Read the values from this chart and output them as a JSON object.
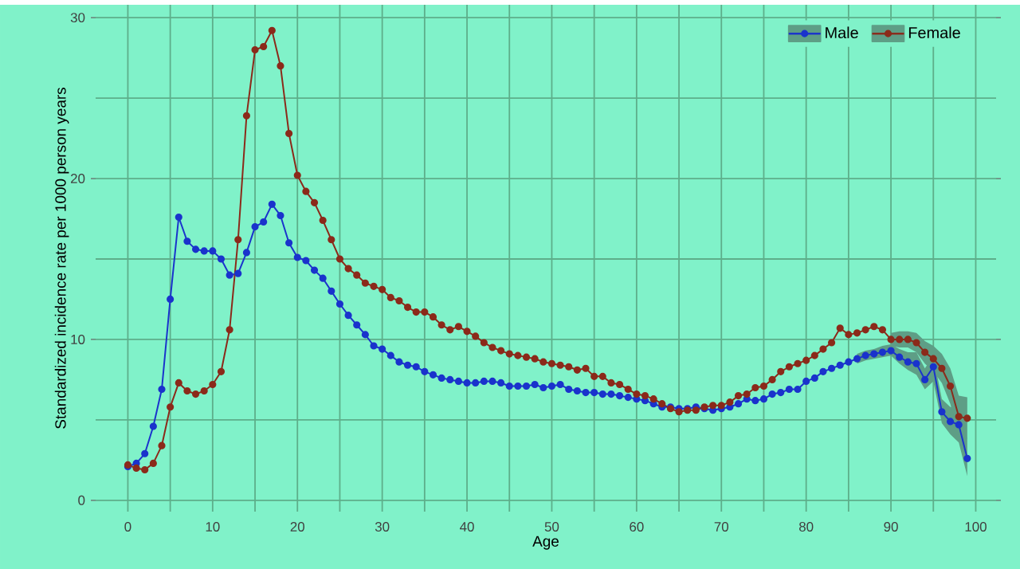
{
  "chart_data": {
    "type": "line",
    "xlabel": "Age",
    "ylabel": "Standardized incidence rate per 1000 person years",
    "x": [
      0,
      1,
      2,
      3,
      4,
      5,
      6,
      7,
      8,
      9,
      10,
      11,
      12,
      13,
      14,
      15,
      16,
      17,
      18,
      19,
      20,
      21,
      22,
      23,
      24,
      25,
      26,
      27,
      28,
      29,
      30,
      31,
      32,
      33,
      34,
      35,
      36,
      37,
      38,
      39,
      40,
      41,
      42,
      43,
      44,
      45,
      46,
      47,
      48,
      49,
      50,
      51,
      52,
      53,
      54,
      55,
      56,
      57,
      58,
      59,
      60,
      61,
      62,
      63,
      64,
      65,
      66,
      67,
      68,
      69,
      70,
      71,
      72,
      73,
      74,
      75,
      76,
      77,
      78,
      79,
      80,
      81,
      82,
      83,
      84,
      85,
      86,
      87,
      88,
      89,
      90,
      91,
      92,
      93,
      94,
      95,
      96,
      97,
      98,
      99
    ],
    "series": [
      {
        "name": "Male",
        "color": "#1a33cc",
        "values": [
          2.1,
          2.3,
          2.9,
          4.6,
          6.9,
          12.5,
          17.6,
          16.1,
          15.6,
          15.5,
          15.5,
          15.0,
          14.0,
          14.1,
          15.4,
          17.0,
          17.3,
          18.4,
          17.7,
          16.0,
          15.1,
          14.9,
          14.3,
          13.8,
          13.0,
          12.2,
          11.5,
          10.9,
          10.3,
          9.6,
          9.4,
          9.0,
          8.6,
          8.4,
          8.3,
          8.0,
          7.8,
          7.6,
          7.5,
          7.4,
          7.3,
          7.3,
          7.4,
          7.4,
          7.3,
          7.1,
          7.1,
          7.1,
          7.2,
          7.0,
          7.1,
          7.2,
          6.9,
          6.8,
          6.7,
          6.7,
          6.6,
          6.6,
          6.5,
          6.4,
          6.3,
          6.2,
          6.0,
          5.8,
          5.8,
          5.7,
          5.7,
          5.8,
          5.7,
          5.6,
          5.7,
          5.8,
          6.0,
          6.3,
          6.2,
          6.3,
          6.6,
          6.7,
          6.9,
          6.9,
          7.4,
          7.6,
          8.0,
          8.2,
          8.4,
          8.6,
          8.8,
          9.0,
          9.1,
          9.2,
          9.3,
          8.9,
          8.6,
          8.5,
          7.5,
          8.3,
          5.5,
          4.9,
          4.7,
          2.6
        ],
        "lower": [
          null,
          null,
          null,
          null,
          null,
          null,
          null,
          null,
          null,
          null,
          null,
          null,
          null,
          null,
          null,
          null,
          null,
          null,
          null,
          null,
          null,
          null,
          null,
          null,
          null,
          null,
          null,
          null,
          null,
          null,
          null,
          null,
          null,
          null,
          null,
          null,
          null,
          null,
          null,
          null,
          null,
          null,
          null,
          null,
          null,
          null,
          null,
          null,
          null,
          null,
          null,
          null,
          null,
          null,
          null,
          null,
          null,
          null,
          null,
          null,
          null,
          null,
          null,
          null,
          null,
          null,
          null,
          null,
          null,
          null,
          null,
          null,
          null,
          null,
          null,
          null,
          null,
          null,
          null,
          null,
          null,
          null,
          null,
          null,
          null,
          null,
          8.5,
          8.7,
          8.8,
          8.9,
          9.0,
          8.5,
          8.1,
          7.8,
          6.9,
          7.4,
          4.8,
          4.1,
          3.6,
          1.5
        ],
        "upper": [
          null,
          null,
          null,
          null,
          null,
          null,
          null,
          null,
          null,
          null,
          null,
          null,
          null,
          null,
          null,
          null,
          null,
          null,
          null,
          null,
          null,
          null,
          null,
          null,
          null,
          null,
          null,
          null,
          null,
          null,
          null,
          null,
          null,
          null,
          null,
          null,
          null,
          null,
          null,
          null,
          null,
          null,
          null,
          null,
          null,
          null,
          null,
          null,
          null,
          null,
          null,
          null,
          null,
          null,
          null,
          null,
          null,
          null,
          null,
          null,
          null,
          null,
          null,
          null,
          null,
          null,
          null,
          null,
          null,
          null,
          null,
          null,
          null,
          null,
          null,
          null,
          null,
          null,
          null,
          null,
          null,
          null,
          null,
          null,
          null,
          null,
          9.1,
          9.3,
          9.4,
          9.6,
          9.7,
          9.4,
          9.2,
          9.2,
          8.2,
          9.0,
          6.3,
          5.8,
          5.8,
          3.8
        ]
      },
      {
        "name": "Female",
        "color": "#8b2a1a",
        "values": [
          2.2,
          2.0,
          1.9,
          2.3,
          3.4,
          5.8,
          7.3,
          6.8,
          6.6,
          6.8,
          7.2,
          8.0,
          10.6,
          16.2,
          23.9,
          28.0,
          28.2,
          29.2,
          27.0,
          22.8,
          20.2,
          19.2,
          18.5,
          17.4,
          16.2,
          15.0,
          14.4,
          14.0,
          13.5,
          13.3,
          13.1,
          12.6,
          12.4,
          12.0,
          11.7,
          11.7,
          11.4,
          10.9,
          10.6,
          10.8,
          10.5,
          10.2,
          9.8,
          9.5,
          9.3,
          9.1,
          9.0,
          8.9,
          8.8,
          8.6,
          8.5,
          8.4,
          8.3,
          8.1,
          8.2,
          7.7,
          7.7,
          7.3,
          7.2,
          6.9,
          6.6,
          6.5,
          6.3,
          6.0,
          5.7,
          5.5,
          5.6,
          5.6,
          5.8,
          5.9,
          5.9,
          6.1,
          6.5,
          6.6,
          7.0,
          7.1,
          7.5,
          8.0,
          8.3,
          8.5,
          8.7,
          9.0,
          9.4,
          9.8,
          10.7,
          10.3,
          10.4,
          10.6,
          10.8,
          10.6,
          10.0,
          10.0,
          10.0,
          9.8,
          9.2,
          8.8,
          8.2,
          7.1,
          5.2,
          5.1
        ],
        "lower": [
          null,
          null,
          null,
          null,
          null,
          null,
          null,
          null,
          null,
          null,
          null,
          null,
          null,
          null,
          null,
          null,
          null,
          null,
          null,
          null,
          null,
          null,
          null,
          null,
          null,
          null,
          null,
          null,
          null,
          null,
          null,
          null,
          null,
          null,
          null,
          null,
          null,
          null,
          null,
          null,
          null,
          null,
          null,
          null,
          null,
          null,
          null,
          null,
          null,
          null,
          null,
          null,
          null,
          null,
          null,
          null,
          null,
          null,
          null,
          null,
          null,
          null,
          null,
          null,
          null,
          null,
          null,
          null,
          null,
          null,
          null,
          null,
          null,
          null,
          null,
          null,
          null,
          null,
          null,
          null,
          null,
          null,
          null,
          null,
          null,
          null,
          null,
          null,
          null,
          null,
          9.6,
          9.5,
          9.5,
          9.2,
          8.5,
          8.0,
          7.3,
          6.0,
          4.0,
          3.8
        ],
        "upper": [
          null,
          null,
          null,
          null,
          null,
          null,
          null,
          null,
          null,
          null,
          null,
          null,
          null,
          null,
          null,
          null,
          null,
          null,
          null,
          null,
          null,
          null,
          null,
          null,
          null,
          null,
          null,
          null,
          null,
          null,
          null,
          null,
          null,
          null,
          null,
          null,
          null,
          null,
          null,
          null,
          null,
          null,
          null,
          null,
          null,
          null,
          null,
          null,
          null,
          null,
          null,
          null,
          null,
          null,
          null,
          null,
          null,
          null,
          null,
          null,
          null,
          null,
          null,
          null,
          null,
          null,
          null,
          null,
          null,
          null,
          null,
          null,
          null,
          null,
          null,
          null,
          null,
          null,
          null,
          null,
          null,
          null,
          null,
          null,
          null,
          null,
          null,
          null,
          null,
          null,
          10.4,
          10.5,
          10.5,
          10.4,
          9.9,
          9.6,
          9.1,
          8.2,
          6.5,
          6.4
        ]
      }
    ],
    "xlim": [
      -3.8,
      102.4
    ],
    "ylim": [
      -0.7,
      30.8
    ],
    "xticks": [
      0,
      10,
      20,
      30,
      40,
      50,
      60,
      70,
      80,
      90,
      100
    ],
    "yticks": [
      0,
      10,
      20,
      30
    ],
    "grid": true,
    "legend": "top right",
    "marker": "circle",
    "line_style": "solid"
  }
}
